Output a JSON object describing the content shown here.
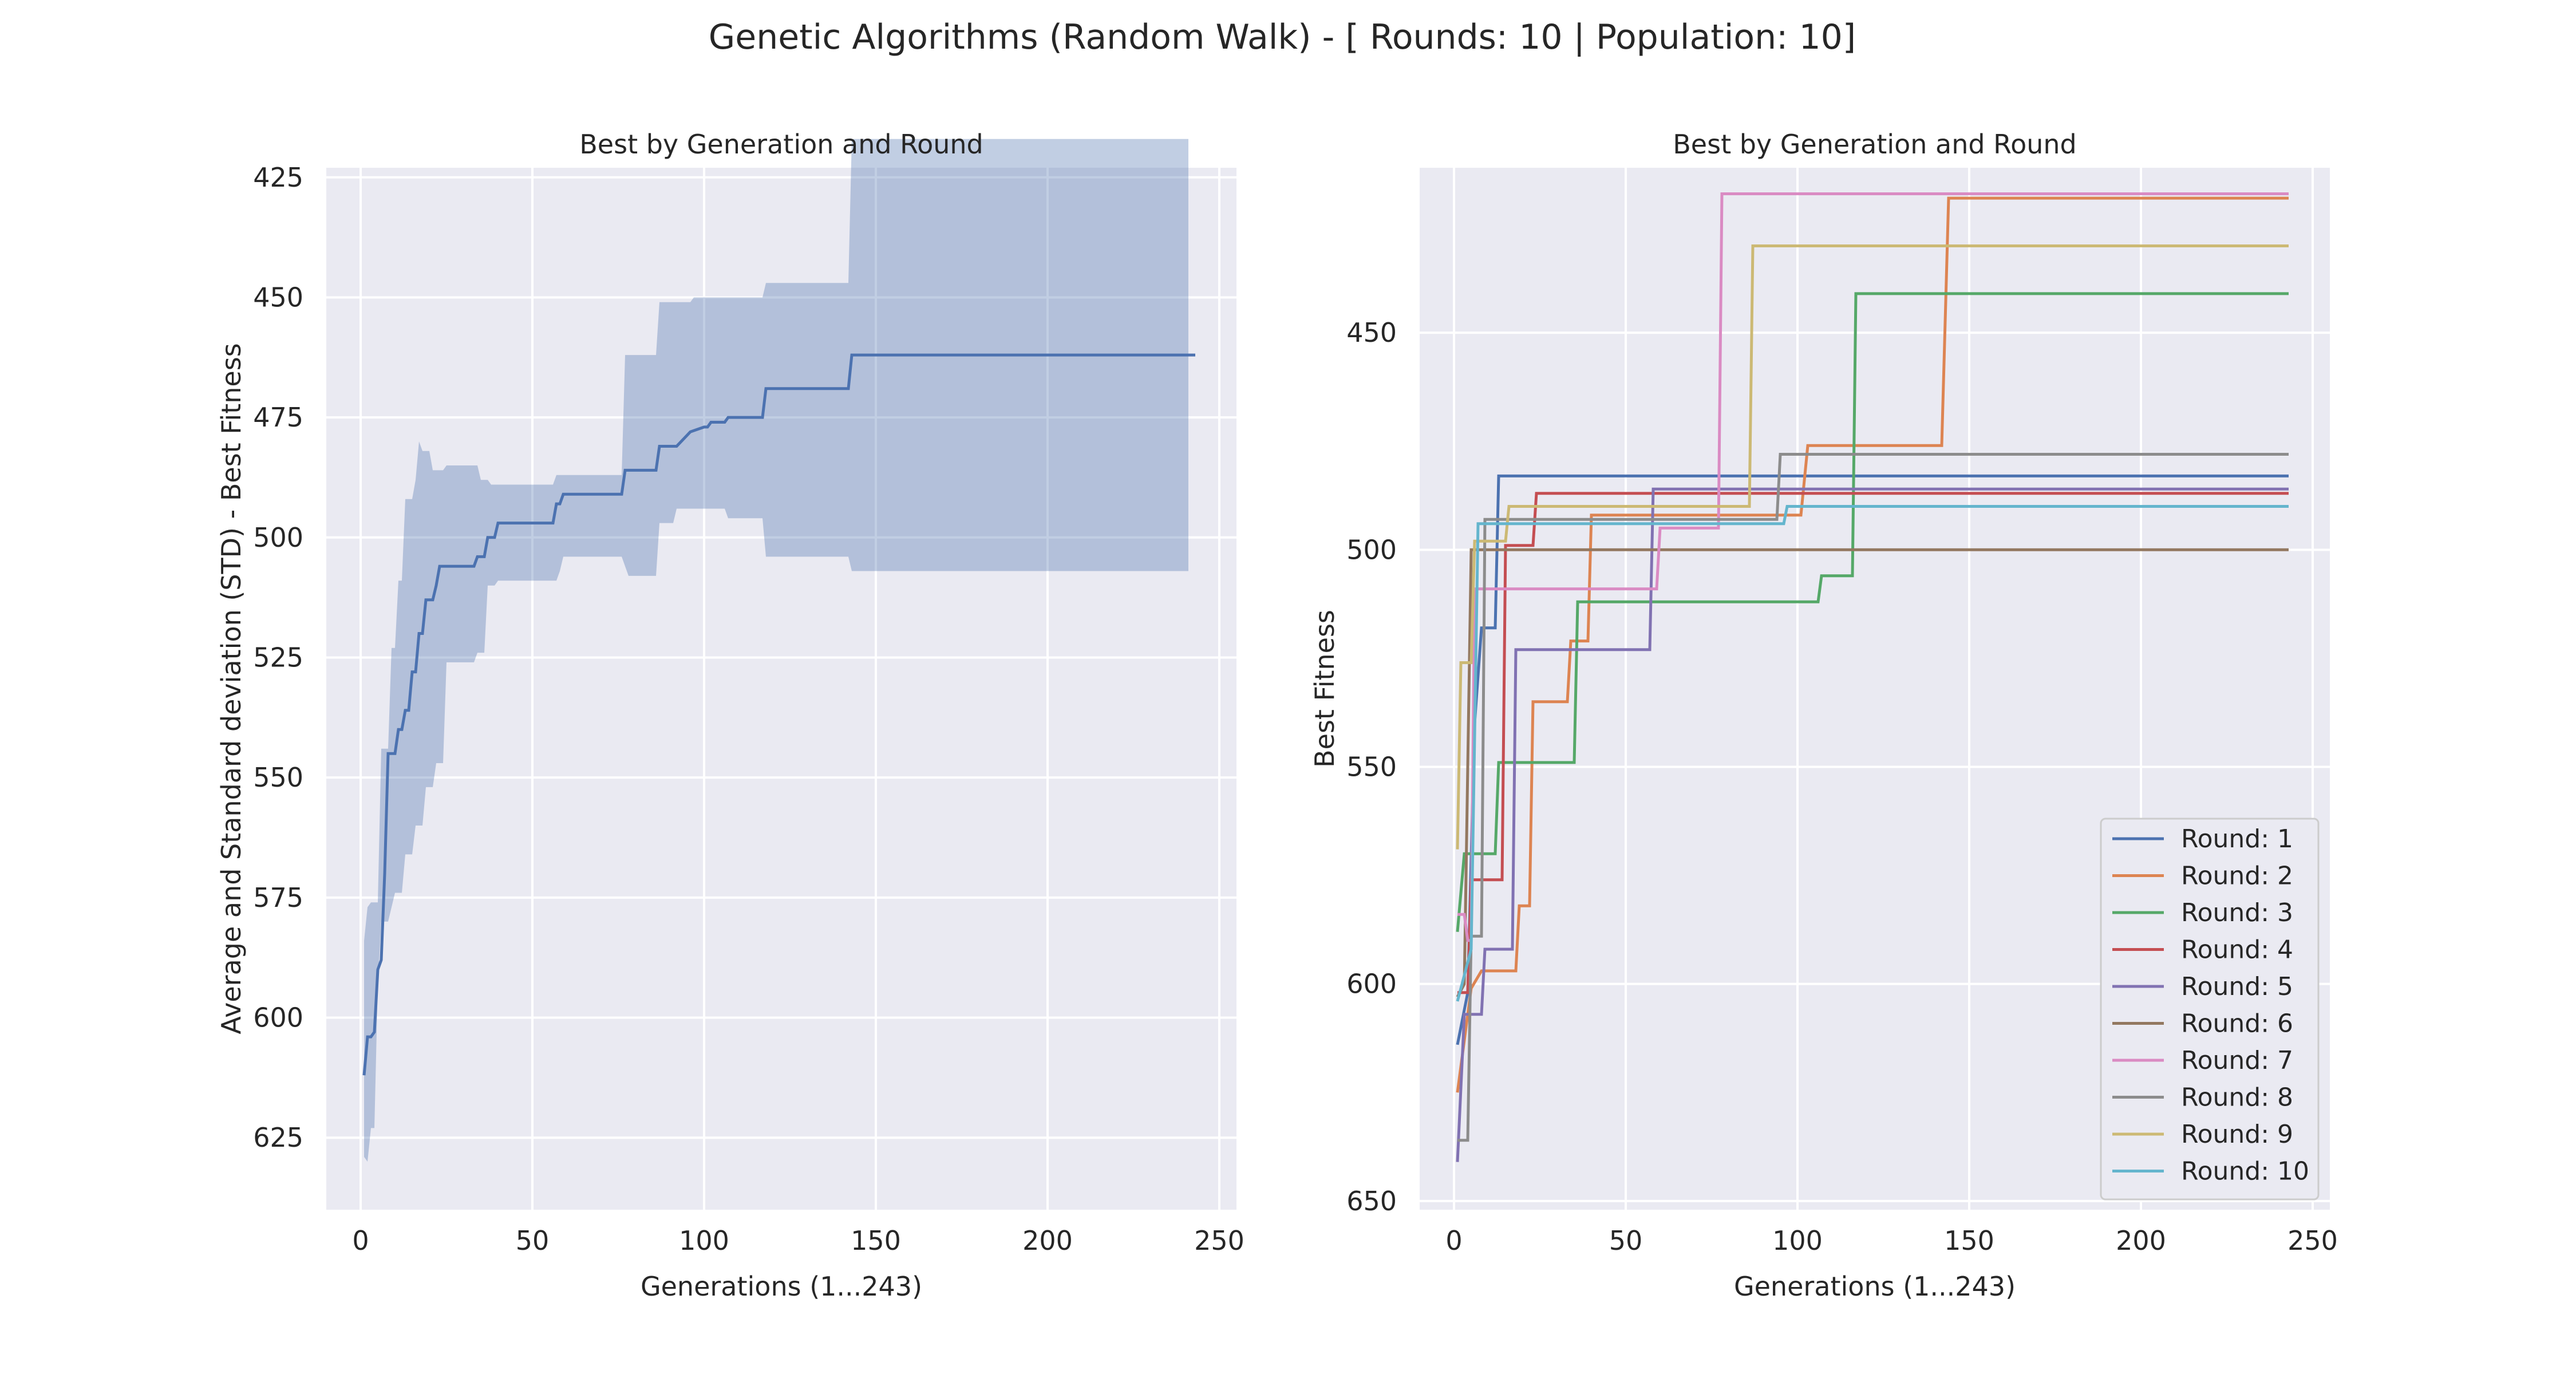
{
  "figure": {
    "suptitle": "Genetic Algorithms (Random Walk) - [ Rounds: 10 | Population: 10]",
    "colors": {
      "axes_bg": "#eaeaf2",
      "grid": "#ffffff",
      "text": "#262626",
      "band": "#b8c5e0",
      "mean_line": "#4c72b0"
    }
  },
  "chart_data": [
    {
      "type": "line",
      "title": "Best by Generation and Round",
      "xlabel": "Generations (1...243)",
      "ylabel": "Average and Standard deviation (STD) - Best Fitness",
      "xlim": [
        -10,
        255
      ],
      "ylim": [
        640,
        423
      ],
      "y_inverted": true,
      "xticks": [
        0,
        50,
        100,
        150,
        200,
        250
      ],
      "yticks": [
        425,
        450,
        475,
        500,
        525,
        550,
        575,
        600,
        625
      ],
      "grid": true,
      "series": [
        {
          "kind": "line",
          "color": "#4c72b0",
          "points": [
            [
              1,
              612
            ],
            [
              2,
              604
            ],
            [
              3,
              604
            ],
            [
              4,
              603
            ],
            [
              5,
              590
            ],
            [
              6,
              588
            ],
            [
              7,
              570
            ],
            [
              8,
              545
            ],
            [
              9,
              545
            ],
            [
              10,
              545
            ],
            [
              11,
              540
            ],
            [
              12,
              540
            ],
            [
              13,
              536
            ],
            [
              14,
              536
            ],
            [
              15,
              528
            ],
            [
              16,
              528
            ],
            [
              17,
              520
            ],
            [
              18,
              520
            ],
            [
              19,
              513
            ],
            [
              20,
              513
            ],
            [
              21,
              513
            ],
            [
              22,
              510
            ],
            [
              23,
              506
            ],
            [
              24,
              506
            ],
            [
              33,
              506
            ],
            [
              34,
              504
            ],
            [
              36,
              504
            ],
            [
              37,
              500
            ],
            [
              39,
              500
            ],
            [
              40,
              497
            ],
            [
              56,
              497
            ],
            [
              57,
              493
            ],
            [
              58,
              493
            ],
            [
              59,
              491
            ],
            [
              76,
              491
            ],
            [
              77,
              486
            ],
            [
              86,
              486
            ],
            [
              87,
              481
            ],
            [
              91,
              481
            ],
            [
              92,
              481
            ],
            [
              96,
              478
            ],
            [
              100,
              477
            ],
            [
              101,
              477
            ],
            [
              102,
              476
            ],
            [
              106,
              476
            ],
            [
              107,
              475
            ],
            [
              117,
              475
            ],
            [
              118,
              469
            ],
            [
              142,
              469
            ],
            [
              143,
              462
            ],
            [
              243,
              462
            ]
          ]
        },
        {
          "kind": "band",
          "color": "#4c72b0",
          "opacity": 0.35,
          "upper": [
            [
              1,
              584
            ],
            [
              2,
              577
            ],
            [
              3,
              576
            ],
            [
              5,
              576
            ],
            [
              6,
              544
            ],
            [
              8,
              544
            ],
            [
              9,
              523
            ],
            [
              10,
              523
            ],
            [
              11,
              509
            ],
            [
              12,
              509
            ],
            [
              13,
              492
            ],
            [
              15,
              492
            ],
            [
              16,
              488
            ],
            [
              17,
              480
            ],
            [
              18,
              482
            ],
            [
              20,
              482
            ],
            [
              21,
              486
            ],
            [
              23,
              486
            ],
            [
              24,
              486
            ],
            [
              25,
              485
            ],
            [
              34,
              485
            ],
            [
              35,
              488
            ],
            [
              37,
              488
            ],
            [
              38,
              489
            ],
            [
              56,
              489
            ],
            [
              57,
              487
            ],
            [
              76,
              487
            ],
            [
              77,
              462
            ],
            [
              86,
              462
            ],
            [
              87,
              451
            ],
            [
              96,
              451
            ],
            [
              97,
              450
            ],
            [
              106,
              450
            ],
            [
              107,
              450
            ],
            [
              117,
              450
            ],
            [
              118,
              447
            ],
            [
              142,
              447
            ],
            [
              143,
              417
            ],
            [
              241,
              417
            ]
          ],
          "lower": [
            [
              241,
              507
            ],
            [
              143,
              507
            ],
            [
              142,
              504
            ],
            [
              118,
              504
            ],
            [
              117,
              496
            ],
            [
              107,
              496
            ],
            [
              106,
              494
            ],
            [
              100,
              494
            ],
            [
              99,
              494
            ],
            [
              92,
              494
            ],
            [
              91,
              497
            ],
            [
              87,
              497
            ],
            [
              86,
              508
            ],
            [
              78,
              508
            ],
            [
              77,
              506
            ],
            [
              76,
              504
            ],
            [
              59,
              504
            ],
            [
              58,
              507
            ],
            [
              57,
              509
            ],
            [
              40,
              509
            ],
            [
              39,
              510
            ],
            [
              37,
              510
            ],
            [
              36,
              524
            ],
            [
              34,
              524
            ],
            [
              33,
              526
            ],
            [
              25,
              526
            ],
            [
              24,
              547
            ],
            [
              22,
              547
            ],
            [
              21,
              552
            ],
            [
              19,
              552
            ],
            [
              18,
              560
            ],
            [
              17,
              560
            ],
            [
              16,
              560
            ],
            [
              15,
              566
            ],
            [
              13,
              566
            ],
            [
              12,
              574
            ],
            [
              10,
              574
            ],
            [
              9,
              577
            ],
            [
              8,
              580
            ],
            [
              6,
              580
            ],
            [
              5,
              593
            ],
            [
              4,
              623
            ],
            [
              3,
              623
            ],
            [
              2,
              630
            ],
            [
              1,
              629
            ]
          ]
        }
      ]
    },
    {
      "type": "line",
      "title": "Best by Generation and Round",
      "xlabel": "Generations (1...243)",
      "ylabel": "Best Fitness",
      "xlim": [
        -10,
        255
      ],
      "ylim": [
        652,
        412
      ],
      "y_inverted": true,
      "xticks": [
        0,
        50,
        100,
        150,
        200,
        250
      ],
      "yticks": [
        450,
        500,
        550,
        600,
        650
      ],
      "grid": true,
      "legend_position": "lower-right",
      "series": [
        {
          "name": "Round: 1",
          "color": "#4c72b0",
          "points": [
            [
              1,
              614
            ],
            [
              4,
              602
            ],
            [
              6,
              540
            ],
            [
              8,
              518
            ],
            [
              12,
              518
            ],
            [
              13,
              483
            ],
            [
              243,
              483
            ]
          ]
        },
        {
          "name": "Round: 2",
          "color": "#dd8452",
          "points": [
            [
              1,
              625
            ],
            [
              5,
              601
            ],
            [
              8,
              597
            ],
            [
              18,
              597
            ],
            [
              19,
              582
            ],
            [
              22,
              582
            ],
            [
              23,
              535
            ],
            [
              33,
              535
            ],
            [
              34,
              521
            ],
            [
              39,
              521
            ],
            [
              40,
              492
            ],
            [
              101,
              492
            ],
            [
              103,
              476
            ],
            [
              142,
              476
            ],
            [
              144,
              419
            ],
            [
              243,
              419
            ]
          ]
        },
        {
          "name": "Round: 3",
          "color": "#55a868",
          "points": [
            [
              1,
              588
            ],
            [
              3,
              570
            ],
            [
              7,
              570
            ],
            [
              12,
              570
            ],
            [
              13,
              549
            ],
            [
              35,
              549
            ],
            [
              36,
              512
            ],
            [
              106,
              512
            ],
            [
              107,
              506
            ],
            [
              116,
              506
            ],
            [
              117,
              441
            ],
            [
              243,
              441
            ]
          ]
        },
        {
          "name": "Round: 4",
          "color": "#c44e52",
          "points": [
            [
              1,
              602
            ],
            [
              4,
              602
            ],
            [
              5,
              576
            ],
            [
              14,
              576
            ],
            [
              15,
              499
            ],
            [
              23,
              499
            ],
            [
              24,
              487
            ],
            [
              243,
              487
            ]
          ]
        },
        {
          "name": "Round: 5",
          "color": "#8172b2",
          "points": [
            [
              1,
              641
            ],
            [
              3,
              607
            ],
            [
              8,
              607
            ],
            [
              9,
              592
            ],
            [
              17,
              592
            ],
            [
              18,
              523
            ],
            [
              57,
              523
            ],
            [
              58,
              486
            ],
            [
              243,
              486
            ]
          ]
        },
        {
          "name": "Round: 6",
          "color": "#937860",
          "points": [
            [
              1,
              603
            ],
            [
              3,
              600
            ],
            [
              5,
              500
            ],
            [
              243,
              500
            ]
          ]
        },
        {
          "name": "Round: 7",
          "color": "#da8bc3",
          "points": [
            [
              1,
              584
            ],
            [
              3,
              584
            ],
            [
              4,
              590
            ],
            [
              5,
              590
            ],
            [
              6,
              509
            ],
            [
              59,
              509
            ],
            [
              60,
              495
            ],
            [
              77,
              495
            ],
            [
              78,
              418
            ],
            [
              243,
              418
            ]
          ]
        },
        {
          "name": "Round: 8",
          "color": "#8c8c8c",
          "points": [
            [
              1,
              636
            ],
            [
              4,
              636
            ],
            [
              5,
              589
            ],
            [
              8,
              589
            ],
            [
              9,
              493
            ],
            [
              94,
              493
            ],
            [
              95,
              478
            ],
            [
              243,
              478
            ]
          ]
        },
        {
          "name": "Round: 9",
          "color": "#ccb974",
          "points": [
            [
              1,
              569
            ],
            [
              2,
              526
            ],
            [
              5,
              526
            ],
            [
              6,
              498
            ],
            [
              15,
              498
            ],
            [
              16,
              490
            ],
            [
              86,
              490
            ],
            [
              87,
              430
            ],
            [
              243,
              430
            ]
          ]
        },
        {
          "name": "Round: 10",
          "color": "#64b5cd",
          "points": [
            [
              1,
              604
            ],
            [
              5,
              592
            ],
            [
              7,
              494
            ],
            [
              96,
              494
            ],
            [
              97,
              490
            ],
            [
              243,
              490
            ]
          ]
        }
      ]
    }
  ]
}
